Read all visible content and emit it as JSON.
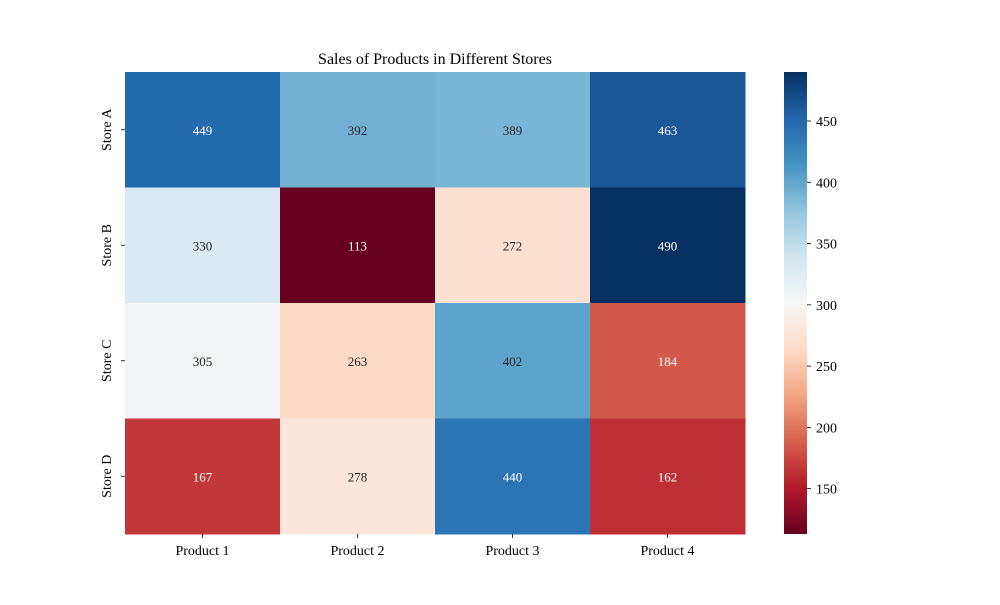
{
  "chart_data": {
    "type": "heatmap",
    "title": "Sales of Products in Different Stores",
    "xlabel": "",
    "ylabel": "",
    "x_categories": [
      "Product 1",
      "Product 2",
      "Product 3",
      "Product 4"
    ],
    "y_categories": [
      "Store A",
      "Store B",
      "Store C",
      "Store D"
    ],
    "values": [
      [
        449,
        392,
        389,
        463
      ],
      [
        330,
        113,
        272,
        490
      ],
      [
        305,
        263,
        402,
        184
      ],
      [
        167,
        278,
        440,
        162
      ]
    ],
    "colormap": "RdBu",
    "value_range": [
      113,
      490
    ],
    "colorbar_ticks": [
      150,
      200,
      250,
      300,
      350,
      400,
      450
    ],
    "annotations": true,
    "grid": false,
    "legend": "colorbar-right"
  }
}
